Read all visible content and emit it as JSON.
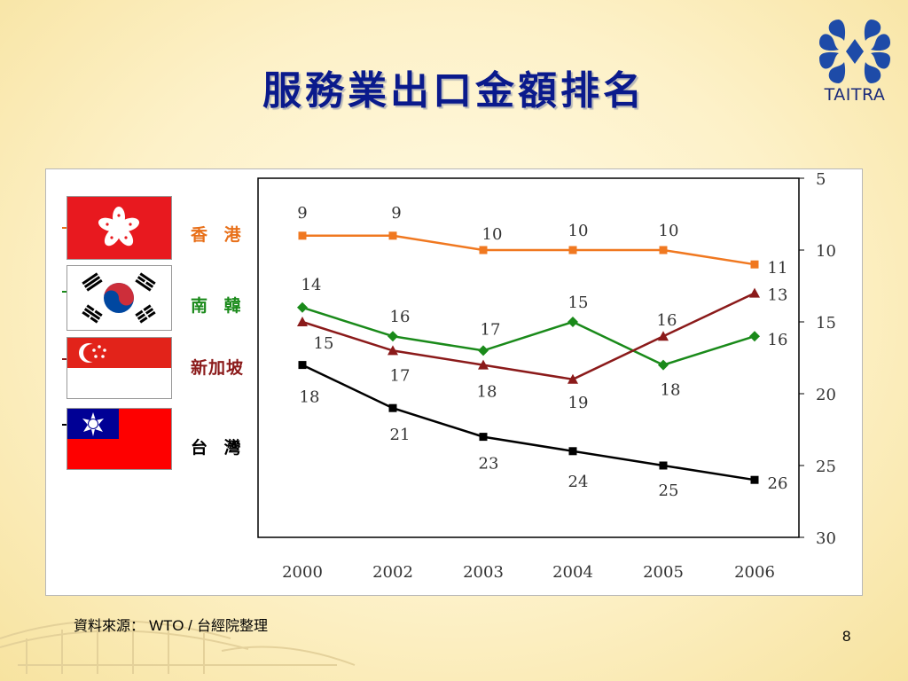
{
  "slide": {
    "title": "服務業出口金額排名",
    "logo_text": "TAITRA",
    "source_label": "資料來源：",
    "source_wto": "WTO /",
    "source_org": "台經院整理",
    "page_number": "8"
  },
  "legend": [
    {
      "label": "香 港",
      "color": "#e8701a",
      "flag": "hong-kong"
    },
    {
      "label": "南 韓",
      "color": "#1a8a1a",
      "flag": "south-korea"
    },
    {
      "label": "新加坡",
      "color": "#8b1a1a",
      "flag": "singapore"
    },
    {
      "label": "台 灣",
      "color": "#000000",
      "flag": "taiwan"
    }
  ],
  "chart_data": {
    "type": "line",
    "categories": [
      "2000",
      "2002",
      "2003",
      "2004",
      "2005",
      "2006"
    ],
    "series": [
      {
        "name": "香 港",
        "values": [
          9,
          9,
          10,
          10,
          10,
          11
        ],
        "color": "#f07820",
        "marker": "square"
      },
      {
        "name": "南 韓",
        "values": [
          14,
          16,
          17,
          15,
          18,
          16
        ],
        "color": "#1a8a1a",
        "marker": "diamond"
      },
      {
        "name": "新加坡",
        "values": [
          15,
          17,
          18,
          19,
          16,
          13
        ],
        "color": "#8b1a1a",
        "marker": "triangle"
      },
      {
        "name": "台 灣",
        "values": [
          18,
          21,
          23,
          24,
          25,
          26
        ],
        "color": "#000000",
        "marker": "square"
      }
    ],
    "y_ticks": [
      "5",
      "10",
      "15",
      "20",
      "25",
      "30"
    ],
    "ylim": [
      5,
      30
    ],
    "y_axis_side": "right",
    "y_inverted": true,
    "grid": false,
    "data_labels": true
  }
}
